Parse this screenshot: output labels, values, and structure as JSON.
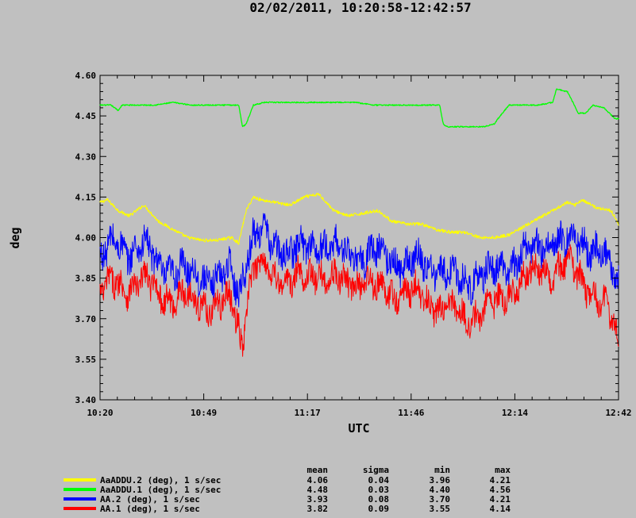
{
  "title": "02/02/2011, 10:20:58-12:42:57",
  "chart_data": {
    "type": "line",
    "title": "02/02/2011, 10:20:58-12:42:57",
    "xlabel": "UTC",
    "ylabel": "deg",
    "x_ticks": [
      "10:20",
      "10:49",
      "11:17",
      "11:46",
      "12:14",
      "12:42"
    ],
    "y_ticks": [
      "3.40",
      "3.55",
      "3.70",
      "3.85",
      "4.00",
      "4.15",
      "4.30",
      "4.45",
      "4.60"
    ],
    "ylim": [
      3.4,
      4.6
    ],
    "xlim_minutes": [
      0,
      142
    ],
    "grid": false,
    "series": [
      {
        "name": "AaADDU.2 (deg), 1 s/sec",
        "color": "#ffff00",
        "x": [
          0,
          2,
          5,
          8,
          12,
          16,
          20,
          24,
          28,
          32,
          36,
          38,
          40,
          42,
          44,
          48,
          52,
          56,
          60,
          64,
          68,
          72,
          76,
          80,
          84,
          88,
          92,
          96,
          100,
          104,
          108,
          112,
          116,
          120,
          124,
          128,
          130,
          132,
          136,
          140,
          142
        ],
        "values": [
          4.13,
          4.14,
          4.1,
          4.08,
          4.12,
          4.06,
          4.03,
          4.0,
          3.99,
          3.99,
          4.0,
          3.98,
          4.1,
          4.15,
          4.14,
          4.13,
          4.12,
          4.15,
          4.16,
          4.1,
          4.08,
          4.09,
          4.1,
          4.06,
          4.05,
          4.05,
          4.03,
          4.02,
          4.02,
          4.0,
          4.0,
          4.01,
          4.04,
          4.07,
          4.1,
          4.13,
          4.12,
          4.14,
          4.11,
          4.1,
          4.05
        ],
        "stats": {
          "mean": "4.06",
          "sigma": "0.04",
          "min": "3.96",
          "max": "4.21"
        }
      },
      {
        "name": "AaADDU.1 (deg), 1 s/sec",
        "color": "#00ff00",
        "x": [
          0,
          3,
          5,
          6,
          10,
          15,
          20,
          25,
          30,
          35,
          38,
          39,
          40,
          42,
          45,
          50,
          55,
          60,
          65,
          70,
          75,
          80,
          85,
          90,
          93,
          94,
          95,
          100,
          105,
          108,
          109,
          112,
          115,
          120,
          124,
          125,
          128,
          131,
          133,
          135,
          138,
          141,
          142
        ],
        "values": [
          4.49,
          4.49,
          4.47,
          4.49,
          4.49,
          4.49,
          4.5,
          4.49,
          4.49,
          4.49,
          4.49,
          4.41,
          4.42,
          4.49,
          4.5,
          4.5,
          4.5,
          4.5,
          4.5,
          4.5,
          4.49,
          4.49,
          4.49,
          4.49,
          4.49,
          4.42,
          4.41,
          4.41,
          4.41,
          4.42,
          4.44,
          4.49,
          4.49,
          4.49,
          4.5,
          4.55,
          4.54,
          4.46,
          4.46,
          4.49,
          4.48,
          4.44,
          4.44
        ],
        "stats": {
          "mean": "4.48",
          "sigma": "0.03",
          "min": "4.40",
          "max": "4.56"
        }
      },
      {
        "name": "AA.2 (deg), 1 s/sec",
        "color": "#0000ff",
        "x": [
          0,
          4,
          8,
          12,
          16,
          20,
          24,
          28,
          32,
          36,
          38,
          40,
          42,
          44,
          48,
          52,
          56,
          60,
          64,
          68,
          72,
          76,
          80,
          84,
          88,
          92,
          96,
          100,
          104,
          108,
          112,
          116,
          120,
          124,
          128,
          132,
          136,
          140,
          142
        ],
        "values": [
          3.92,
          3.98,
          3.95,
          3.97,
          3.9,
          3.88,
          3.87,
          3.86,
          3.84,
          3.88,
          3.8,
          3.92,
          4.0,
          4.02,
          3.97,
          3.95,
          3.96,
          3.98,
          3.96,
          3.94,
          3.93,
          3.95,
          3.92,
          3.9,
          3.91,
          3.89,
          3.86,
          3.84,
          3.86,
          3.87,
          3.9,
          3.94,
          3.96,
          4.0,
          3.98,
          3.99,
          3.95,
          3.88,
          3.84
        ],
        "stats": {
          "mean": "3.93",
          "sigma": "0.08",
          "min": "3.70",
          "max": "4.21"
        }
      },
      {
        "name": "AA.1 (deg), 1 s/sec",
        "color": "#ff0000",
        "x": [
          0,
          4,
          8,
          12,
          16,
          20,
          24,
          28,
          32,
          36,
          38,
          39,
          40,
          42,
          44,
          48,
          52,
          56,
          60,
          64,
          68,
          72,
          76,
          80,
          84,
          88,
          92,
          96,
          100,
          104,
          108,
          112,
          116,
          120,
          124,
          128,
          132,
          136,
          140,
          142
        ],
        "values": [
          3.8,
          3.83,
          3.82,
          3.84,
          3.8,
          3.77,
          3.78,
          3.76,
          3.74,
          3.77,
          3.66,
          3.6,
          3.75,
          3.88,
          3.9,
          3.86,
          3.84,
          3.85,
          3.87,
          3.84,
          3.83,
          3.84,
          3.81,
          3.79,
          3.8,
          3.78,
          3.75,
          3.73,
          3.7,
          3.72,
          3.75,
          3.8,
          3.84,
          3.88,
          3.87,
          3.89,
          3.85,
          3.78,
          3.7,
          3.62
        ],
        "stats": {
          "mean": "3.82",
          "sigma": "0.09",
          "min": "3.55",
          "max": "4.14"
        }
      }
    ]
  },
  "legend": {
    "headers": {
      "mean": "mean",
      "sigma": "sigma",
      "min": "min",
      "max": "max"
    }
  }
}
